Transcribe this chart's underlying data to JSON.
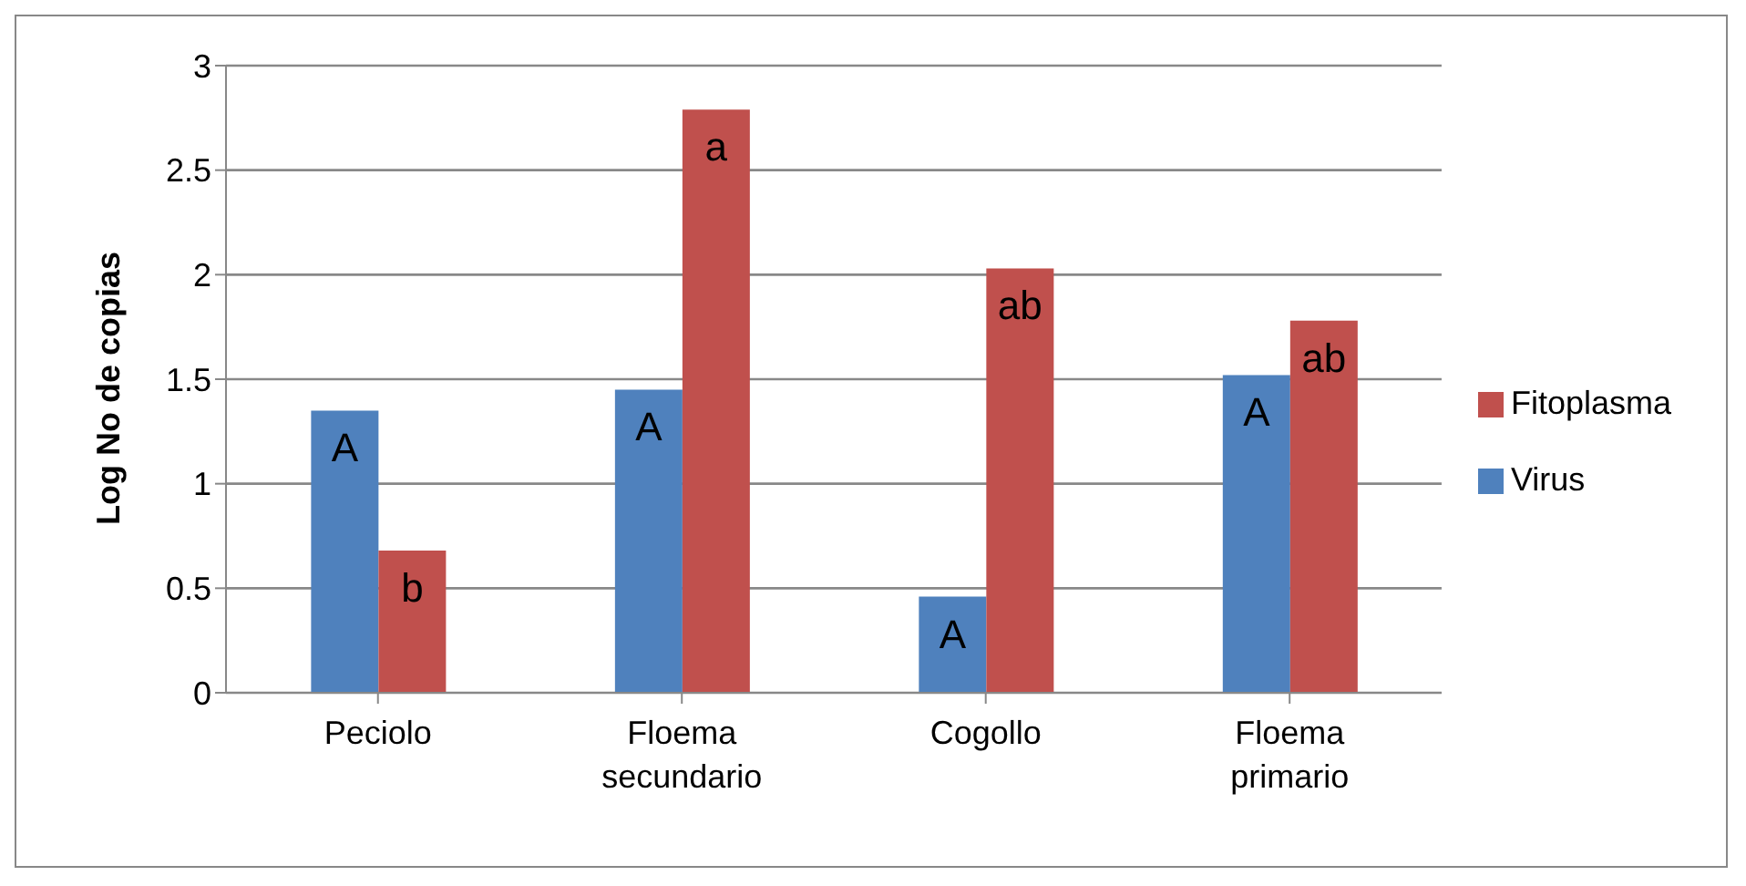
{
  "chart_data": {
    "type": "bar",
    "ylabel": "Log No de copias",
    "categories": [
      "Peciolo",
      "Floema secundario",
      "Cogollo",
      "Floema primario"
    ],
    "series": [
      {
        "name": "Virus",
        "color": "#4f81bd",
        "values": [
          1.35,
          1.45,
          0.46,
          1.52
        ],
        "value_labels": [
          "A",
          "A",
          "A",
          "A"
        ]
      },
      {
        "name": "Fitoplasma",
        "color": "#c0504d",
        "values": [
          0.68,
          2.79,
          2.03,
          1.78
        ],
        "value_labels": [
          "b",
          "a",
          "ab",
          "ab"
        ]
      }
    ],
    "ylim": [
      0,
      3
    ],
    "yticks": [
      0,
      0.5,
      1,
      1.5,
      2,
      2.5,
      3
    ],
    "grid": "y",
    "legend": "right"
  }
}
